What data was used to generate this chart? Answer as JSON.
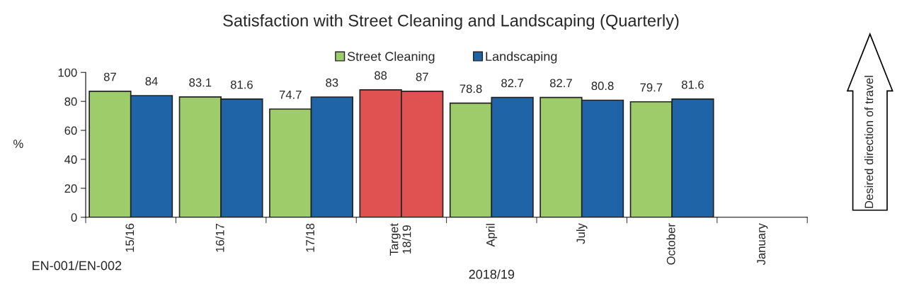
{
  "chart_data": {
    "type": "bar",
    "title": "Satisfaction with Street Cleaning and Landscaping (Quarterly)",
    "ylabel": "%",
    "categories": [
      "15/16",
      "16/17",
      "17/18",
      "Target\n18/19",
      "April",
      "July",
      "October",
      "January"
    ],
    "series": [
      {
        "name": "Street Cleaning",
        "color": "#9fcc6b",
        "colors": [
          "#9fcc6b",
          "#9fcc6b",
          "#9fcc6b",
          "#e05252",
          "#9fcc6b",
          "#9fcc6b",
          "#9fcc6b",
          "#9fcc6b"
        ],
        "values": [
          87,
          83.1,
          74.7,
          88,
          78.8,
          82.7,
          79.7,
          null
        ]
      },
      {
        "name": "Landscaping",
        "color": "#1f64a6",
        "colors": [
          "#1f64a6",
          "#1f64a6",
          "#1f64a6",
          "#e05252",
          "#1f64a6",
          "#1f64a6",
          "#1f64a6",
          "#1f64a6"
        ],
        "values": [
          84,
          81.6,
          83,
          87,
          82.7,
          80.8,
          81.6,
          null
        ]
      }
    ],
    "ylim": [
      0,
      100
    ],
    "yticks": [
      0,
      20,
      40,
      60,
      80,
      100
    ],
    "data_labels": true,
    "legend": "top",
    "grid": false,
    "annotations": [
      "2018/19",
      "EN-001/EN-002",
      "Desired direction of travel"
    ]
  }
}
